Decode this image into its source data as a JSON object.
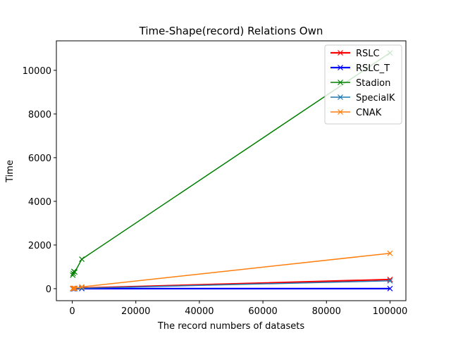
{
  "chart_data": {
    "type": "line",
    "title": "Time-Shape(record) Relations Own",
    "xlabel": "The record numbers of datasets",
    "ylabel": "Time",
    "xlim": [
      -5000,
      105000
    ],
    "ylim": [
      -550,
      11350
    ],
    "xticks": [
      0,
      20000,
      40000,
      60000,
      80000,
      100000
    ],
    "yticks": [
      0,
      2000,
      4000,
      6000,
      8000,
      10000
    ],
    "grid": false,
    "legend_position": "top-right",
    "marker": "x",
    "series": [
      {
        "name": "RSLC",
        "color": "#ff0000",
        "line_width": 2.2,
        "x": [
          150,
          300,
          500,
          800,
          3000,
          100000
        ],
        "y": [
          4,
          6,
          8,
          10,
          30,
          420
        ]
      },
      {
        "name": "RSLC_T",
        "color": "#0000ff",
        "line_width": 2.2,
        "x": [
          150,
          300,
          500,
          800,
          3000,
          100000
        ],
        "y": [
          1,
          1,
          1,
          1,
          2,
          3
        ]
      },
      {
        "name": "Stadion",
        "color": "#008000",
        "line_width": 1.5,
        "x": [
          150,
          300,
          500,
          800,
          3000,
          100000
        ],
        "y": [
          620,
          700,
          790,
          760,
          1350,
          10800
        ]
      },
      {
        "name": "SpecialK",
        "color": "#1f77b4",
        "line_width": 1.5,
        "x": [
          150,
          300,
          500,
          800,
          3000,
          100000
        ],
        "y": [
          2,
          3,
          5,
          7,
          20,
          360
        ]
      },
      {
        "name": "CNAK",
        "color": "#ff7f0e",
        "line_width": 1.5,
        "x": [
          150,
          300,
          500,
          800,
          3000,
          100000
        ],
        "y": [
          10,
          12,
          15,
          20,
          80,
          1620
        ]
      }
    ]
  }
}
